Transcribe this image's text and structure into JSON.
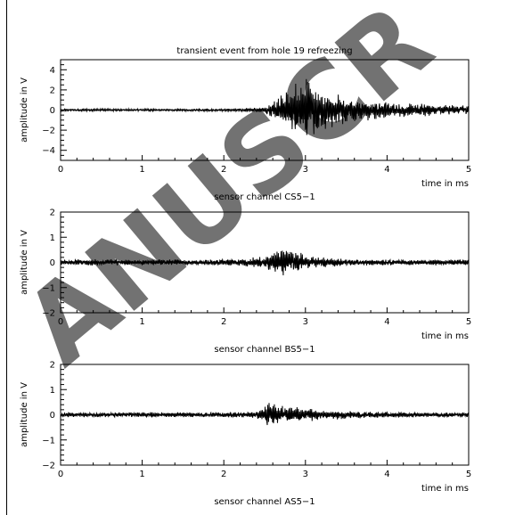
{
  "watermark": {
    "text": "ANUSCR",
    "color": "#c8c8c8"
  },
  "figure": {
    "title": "transient event from hole 19 refreezing"
  },
  "chart_data": [
    {
      "type": "line",
      "title": "transient event from hole 19 refreezing",
      "xlabel": "time in ms",
      "ylabel": "amplitude in V",
      "caption": "sensor channel CS5−1",
      "xlim": [
        0,
        5
      ],
      "ylim": [
        -5,
        5
      ],
      "x_ticks": [
        0,
        1,
        2,
        3,
        4,
        5
      ],
      "x_tick_labels": [
        "0",
        "1",
        "2",
        "3",
        "4",
        "5"
      ],
      "y_ticks": [
        -4,
        -2,
        0,
        2,
        4
      ],
      "y_tick_labels": [
        "−4",
        "−2",
        "0",
        "2",
        "4"
      ],
      "grid": false,
      "series": [
        {
          "x": [
            0,
            0.5,
            1,
            1.5,
            2,
            2.3,
            2.5,
            2.6,
            2.7,
            2.8,
            2.85,
            2.9,
            2.95,
            3.0,
            3.05,
            3.1,
            3.15,
            3.2,
            3.3,
            3.4,
            3.5,
            3.6,
            3.8,
            4.0,
            4.2,
            4.5,
            4.8,
            5.0
          ],
          "envelope": [
            0.12,
            0.12,
            0.12,
            0.12,
            0.12,
            0.2,
            0.3,
            1.0,
            1.5,
            2.0,
            2.6,
            3.0,
            3.2,
            3.3,
            3.3,
            3.0,
            2.8,
            2.4,
            1.8,
            1.6,
            1.5,
            1.2,
            1.0,
            0.9,
            0.8,
            0.6,
            0.5,
            0.5
          ]
        }
      ]
    },
    {
      "type": "line",
      "xlabel": "time in ms",
      "ylabel": "amplitude in V",
      "caption": "sensor channel BS5−1",
      "xlim": [
        0,
        5
      ],
      "ylim": [
        -2,
        2
      ],
      "x_ticks": [
        0,
        1,
        2,
        3,
        4,
        5
      ],
      "x_tick_labels": [
        "0",
        "1",
        "2",
        "3",
        "4",
        "5"
      ],
      "y_ticks": [
        -2,
        -1,
        0,
        1,
        2
      ],
      "y_tick_labels": [
        "−2",
        "−1",
        "0",
        "1",
        "2"
      ],
      "grid": false,
      "series": [
        {
          "x": [
            0,
            0.5,
            1,
            1.5,
            2,
            2.3,
            2.5,
            2.6,
            2.7,
            2.8,
            2.9,
            3.0,
            3.2,
            3.5,
            4.0,
            4.5,
            5.0
          ],
          "envelope": [
            0.12,
            0.13,
            0.12,
            0.12,
            0.12,
            0.18,
            0.25,
            0.4,
            0.55,
            0.6,
            0.45,
            0.3,
            0.22,
            0.15,
            0.12,
            0.12,
            0.12
          ]
        }
      ]
    },
    {
      "type": "line",
      "xlabel": "time in ms",
      "ylabel": "amplitude in V",
      "caption": "sensor channel AS5−1",
      "xlim": [
        0,
        5
      ],
      "ylim": [
        -2,
        2
      ],
      "x_ticks": [
        0,
        1,
        2,
        3,
        4,
        5
      ],
      "x_tick_labels": [
        "0",
        "1",
        "2",
        "3",
        "4",
        "5"
      ],
      "y_ticks": [
        -2,
        -1,
        0,
        1,
        2
      ],
      "y_tick_labels": [
        "−2",
        "−1",
        "0",
        "1",
        "2"
      ],
      "grid": false,
      "series": [
        {
          "x": [
            0,
            0.5,
            1,
            1.5,
            2,
            2.3,
            2.45,
            2.55,
            2.65,
            2.75,
            2.9,
            3.1,
            3.3,
            3.6,
            4.0,
            4.5,
            5.0
          ],
          "envelope": [
            0.1,
            0.1,
            0.1,
            0.1,
            0.1,
            0.12,
            0.2,
            0.5,
            0.45,
            0.35,
            0.3,
            0.25,
            0.2,
            0.15,
            0.12,
            0.1,
            0.1
          ]
        }
      ]
    }
  ]
}
